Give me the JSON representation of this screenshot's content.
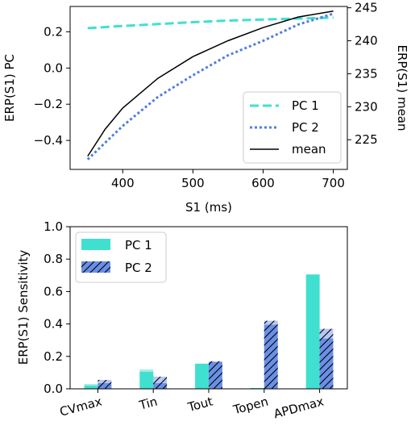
{
  "chart_data": [
    {
      "type": "line",
      "xlabel": "S1 (ms)",
      "ylabel": "ERP(S1) PC",
      "ylabel_right": "ERP(S1) mean",
      "xlim": [
        325,
        720
      ],
      "ylim": [
        -0.56,
        0.34
      ],
      "ylim_right": [
        220.5,
        245.2
      ],
      "xticks": [
        "400",
        "500",
        "600",
        "700"
      ],
      "yticks": [
        "−0.4",
        "−0.2",
        "0.0",
        "0.2"
      ],
      "yticks_right": [
        "225",
        "230",
        "235",
        "240",
        "245"
      ],
      "legend_position": "lower right",
      "series": [
        {
          "name": "PC 1",
          "color": "#40e0d0",
          "style": "dashed",
          "axis": "left",
          "x": [
            350,
            400,
            450,
            500,
            550,
            600,
            650,
            700
          ],
          "y": [
            0.22,
            0.232,
            0.243,
            0.253,
            0.262,
            0.268,
            0.273,
            0.278
          ]
        },
        {
          "name": "PC 2",
          "color": "#4f7fe0",
          "style": "dotted",
          "axis": "left",
          "x": [
            350,
            400,
            450,
            500,
            550,
            600,
            650,
            700
          ],
          "y": [
            -0.505,
            -0.32,
            -0.16,
            -0.04,
            0.07,
            0.15,
            0.24,
            0.3
          ]
        },
        {
          "name": "mean",
          "color": "#000000",
          "style": "solid",
          "axis": "right",
          "x": [
            350,
            375,
            400,
            450,
            500,
            550,
            600,
            650,
            700
          ],
          "y": [
            222.5,
            226.6,
            229.8,
            234.3,
            237.6,
            240.0,
            242.0,
            243.6,
            244.5
          ]
        }
      ]
    },
    {
      "type": "bar",
      "ylabel": "ERP(S1) Sensitivity",
      "ylim": [
        0,
        1.0
      ],
      "yticks": [
        "0.0",
        "0.2",
        "0.4",
        "0.6",
        "0.8",
        "1.0"
      ],
      "categories": [
        "CVmax",
        "Tin",
        "Tout",
        "Topen",
        "APDmax"
      ],
      "legend_position": "upper left",
      "series": [
        {
          "name": "PC 1",
          "color": "#40e0d0",
          "hatch": "none",
          "values": [
            0.02,
            0.105,
            0.155,
            0.005,
            0.705
          ],
          "totals": [
            0.03,
            0.12,
            0.155,
            0.005,
            0.705
          ]
        },
        {
          "name": "PC 2",
          "color": "#6a8fe6",
          "hatch": "diagonal",
          "values": [
            0.035,
            0.035,
            0.165,
            0.395,
            0.31
          ],
          "totals": [
            0.055,
            0.075,
            0.17,
            0.42,
            0.37
          ]
        }
      ]
    }
  ]
}
